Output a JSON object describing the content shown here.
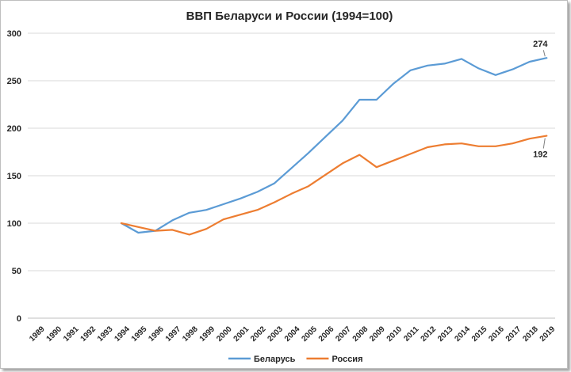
{
  "chart_data": {
    "type": "line",
    "title": "ВВП Беларуси и России (1994=100)",
    "xlabel": "",
    "ylabel": "",
    "ylim": [
      0,
      300
    ],
    "yticks": [
      0,
      50,
      100,
      150,
      200,
      250,
      300
    ],
    "x": [
      "1989",
      "1990",
      "1991",
      "1992",
      "1993",
      "1994",
      "1995",
      "1996",
      "1997",
      "1998",
      "1999",
      "2000",
      "2001",
      "2002",
      "2003",
      "2004",
      "2005",
      "2006",
      "2007",
      "2008",
      "2009",
      "2010",
      "2011",
      "2012",
      "2013",
      "2014",
      "2015",
      "2016",
      "2017",
      "2018",
      "2019"
    ],
    "grid": true,
    "legend_position": "bottom",
    "series": [
      {
        "name": "Беларусь",
        "color": "#5B9BD5",
        "values": [
          null,
          null,
          null,
          null,
          null,
          100,
          90,
          92,
          103,
          111,
          114,
          120,
          126,
          133,
          142,
          158,
          174,
          191,
          208,
          230,
          230,
          247,
          261,
          266,
          268,
          273,
          263,
          256,
          262,
          270,
          274
        ],
        "end_label": "274"
      },
      {
        "name": "Россия",
        "color": "#ED7D31",
        "values": [
          null,
          null,
          null,
          null,
          null,
          100,
          96,
          92,
          93,
          88,
          94,
          104,
          109,
          114,
          122,
          131,
          139,
          151,
          163,
          172,
          159,
          166,
          173,
          180,
          183,
          184,
          181,
          181,
          184,
          189,
          192
        ],
        "end_label": "192"
      }
    ]
  }
}
